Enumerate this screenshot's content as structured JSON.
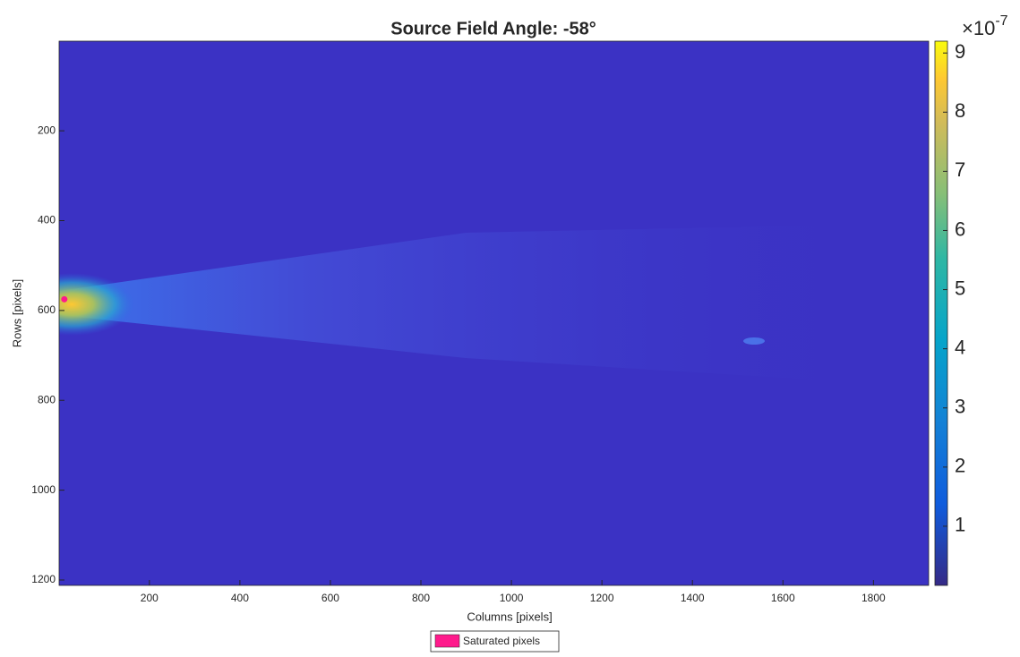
{
  "chart_data": {
    "type": "heatmap",
    "title": "Source Field Angle: -58°",
    "xlabel": "Columns [pixels]",
    "ylabel": "Rows [pixels]",
    "xlim": [
      0.5,
      1922
    ],
    "ylim": [
      0.5,
      1212
    ],
    "xticks": [
      200,
      400,
      600,
      800,
      1000,
      1200,
      1400,
      1600,
      1800
    ],
    "yticks": [
      200,
      400,
      600,
      800,
      1000,
      1200
    ],
    "y_reversed": true,
    "colormap": "parula",
    "clim": [
      0,
      9.2
    ],
    "cticks": [
      1,
      2,
      3,
      4,
      5,
      6,
      7,
      8,
      9
    ],
    "cmultiplier_base": "×10",
    "cmultiplier_exponent": "-7",
    "series": [
      {
        "name": "Saturated pixels",
        "color": "#ff1a8c",
        "x": [
          12
        ],
        "y": [
          575
        ]
      }
    ]
  }
}
